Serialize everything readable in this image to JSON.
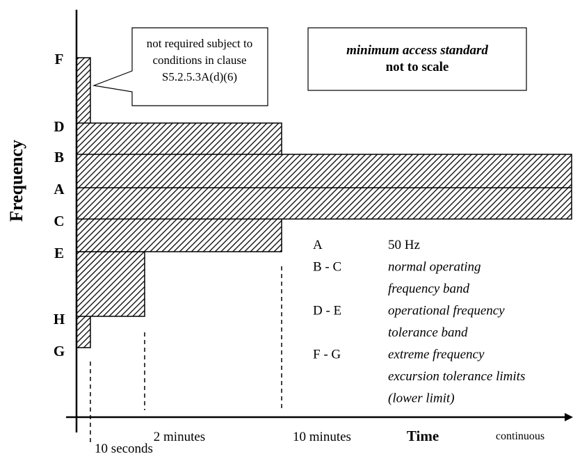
{
  "axis_titles": {
    "y": "Frequency",
    "x": "Time"
  },
  "levels": [
    "F",
    "D",
    "B",
    "A",
    "C",
    "E",
    "H",
    "G"
  ],
  "time_labels": [
    "10 seconds",
    "2 minutes",
    "10 minutes",
    "continuous"
  ],
  "callout": [
    "not required subject to",
    "conditions in clause",
    "S5.2.5.3A(d)(6)"
  ],
  "note": {
    "line1": "minimum access standard",
    "line2": "not to scale"
  },
  "legend": [
    {
      "key": "A",
      "text": [
        "50 Hz"
      ]
    },
    {
      "key": "B - C",
      "text": [
        "normal operating",
        "frequency band"
      ]
    },
    {
      "key": "D - E",
      "text": [
        "operational frequency",
        "tolerance band"
      ]
    },
    {
      "key": "F - G",
      "text": [
        "extreme frequency",
        "excursion tolerance limits",
        "(lower limit)"
      ]
    }
  ]
}
